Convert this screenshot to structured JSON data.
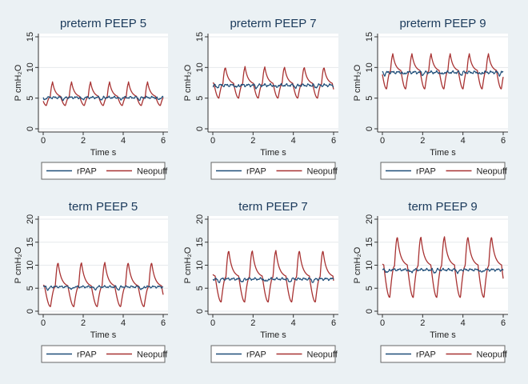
{
  "figure": {
    "background": "#ebf1f4",
    "plot_background": "#ffffff",
    "title_color": "#1b3a5b",
    "text_color": "#222222"
  },
  "chart_data": [
    {
      "type": "line",
      "title": "preterm PEEP 5",
      "xlabel": "Time s",
      "ylabel": "P cmH₂O",
      "xlim": [
        0,
        6
      ],
      "ylim": [
        0,
        15
      ],
      "xticks": [
        0,
        2,
        4,
        6
      ],
      "yticks": [
        0,
        5,
        10,
        15
      ],
      "legend": [
        "rPAP",
        "Neopuff"
      ],
      "legend_position": "bottom",
      "series": [
        {
          "name": "rPAP",
          "color": "#1f4e79",
          "baseline": 5.1,
          "noise": 0.25,
          "peak": 0.0,
          "trough": 0.0
        },
        {
          "name": "Neopuff",
          "color": "#a83232",
          "baseline": 5.2,
          "peak": 7.4,
          "trough": 3.8,
          "period": 0.95,
          "phase": 0.35
        }
      ]
    },
    {
      "type": "line",
      "title": "preterm PEEP 7",
      "xlabel": "Time s",
      "ylabel": "P cmH₂O",
      "xlim": [
        0,
        6
      ],
      "ylim": [
        0,
        15
      ],
      "xticks": [
        0,
        2,
        4,
        6
      ],
      "yticks": [
        0,
        5,
        10,
        15
      ],
      "legend": [
        "rPAP",
        "Neopuff"
      ],
      "legend_position": "bottom",
      "series": [
        {
          "name": "rPAP",
          "color": "#1f4e79",
          "baseline": 7.1,
          "noise": 0.3,
          "peak": 0.0,
          "trough": 0.0
        },
        {
          "name": "Neopuff",
          "color": "#a83232",
          "baseline": 7.3,
          "peak": 9.9,
          "trough": 5.0,
          "period": 0.98,
          "phase": 0.5
        }
      ]
    },
    {
      "type": "line",
      "title": "preterm PEEP 9",
      "xlabel": "Time s",
      "ylabel": "P cmH₂O",
      "xlim": [
        0,
        6
      ],
      "ylim": [
        0,
        15
      ],
      "xticks": [
        0,
        2,
        4,
        6
      ],
      "yticks": [
        0,
        5,
        10,
        15
      ],
      "legend": [
        "rPAP",
        "Neopuff"
      ],
      "legend_position": "bottom",
      "series": [
        {
          "name": "rPAP",
          "color": "#1f4e79",
          "baseline": 9.2,
          "noise": 0.3,
          "peak": 0.0,
          "trough": 0.0
        },
        {
          "name": "Neopuff",
          "color": "#a83232",
          "baseline": 9.4,
          "peak": 12.0,
          "trough": 6.5,
          "period": 0.95,
          "phase": 0.4
        }
      ]
    },
    {
      "type": "line",
      "title": "term PEEP 5",
      "xlabel": "Time s",
      "ylabel": "P cmH₂O",
      "xlim": [
        0,
        6
      ],
      "ylim": [
        0,
        20
      ],
      "xticks": [
        0,
        2,
        4,
        6
      ],
      "yticks": [
        0,
        5,
        10,
        15,
        20
      ],
      "legend": [
        "rPAP",
        "Neopuff"
      ],
      "legend_position": "bottom",
      "series": [
        {
          "name": "rPAP",
          "color": "#1f4e79",
          "baseline": 5.3,
          "noise": 0.3,
          "peak": 0.0,
          "trough": 0.0
        },
        {
          "name": "Neopuff",
          "color": "#a83232",
          "baseline": 5.3,
          "peak": 10.4,
          "trough": 1.0,
          "period": 1.17,
          "phase": 0.6
        }
      ]
    },
    {
      "type": "line",
      "title": "term PEEP 7",
      "xlabel": "Time s",
      "ylabel": "P cmH₂O",
      "xlim": [
        0,
        6
      ],
      "ylim": [
        0,
        20
      ],
      "xticks": [
        0,
        2,
        4,
        6
      ],
      "yticks": [
        0,
        5,
        10,
        15,
        20
      ],
      "legend": [
        "rPAP",
        "Neopuff"
      ],
      "legend_position": "bottom",
      "series": [
        {
          "name": "rPAP",
          "color": "#1f4e79",
          "baseline": 7.0,
          "noise": 0.35,
          "peak": 0.0,
          "trough": 0.0
        },
        {
          "name": "Neopuff",
          "color": "#a83232",
          "baseline": 7.4,
          "peak": 13.0,
          "trough": 2.0,
          "period": 1.17,
          "phase": 0.65
        }
      ]
    },
    {
      "type": "line",
      "title": "term PEEP 9",
      "xlabel": "Time s",
      "ylabel": "P cmH₂O",
      "xlim": [
        0,
        6
      ],
      "ylim": [
        0,
        20
      ],
      "xticks": [
        0,
        2,
        4,
        6
      ],
      "yticks": [
        0,
        5,
        10,
        15,
        20
      ],
      "legend": [
        "rPAP",
        "Neopuff"
      ],
      "legend_position": "bottom",
      "series": [
        {
          "name": "rPAP",
          "color": "#1f4e79",
          "baseline": 9.0,
          "noise": 0.35,
          "peak": 0.0,
          "trough": 0.0
        },
        {
          "name": "Neopuff",
          "color": "#a83232",
          "baseline": 9.8,
          "peak": 16.0,
          "trough": 3.0,
          "period": 1.17,
          "phase": 0.6
        }
      ]
    }
  ]
}
